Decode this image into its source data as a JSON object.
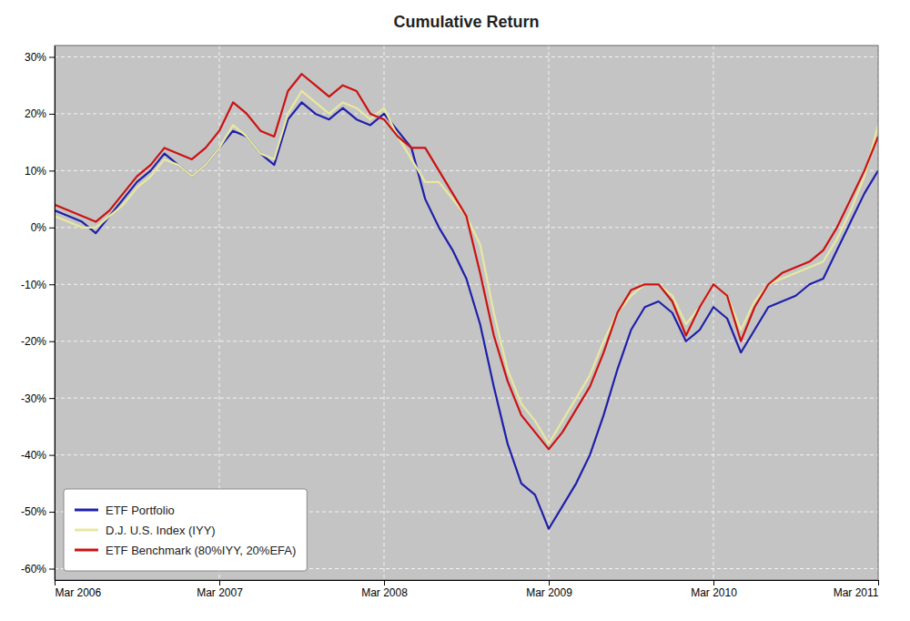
{
  "chart_data": {
    "type": "line",
    "title": "Cumulative Return",
    "x": [
      0,
      1,
      2,
      3,
      4,
      5,
      6,
      7,
      8,
      9,
      10,
      11,
      12,
      13,
      14,
      15,
      16,
      17,
      18,
      19,
      20,
      21,
      22,
      23,
      24,
      25,
      26,
      27,
      28,
      29,
      30,
      31,
      32,
      33,
      34,
      35,
      36,
      37,
      38,
      39,
      40,
      41,
      42,
      43,
      44,
      45,
      46,
      47,
      48,
      49,
      50,
      51,
      52,
      53,
      54,
      55,
      56,
      57,
      58,
      59,
      60
    ],
    "series": [
      {
        "name": "ETF Portfolio",
        "color": "#1f1faa",
        "values": [
          0.03,
          0.02,
          0.01,
          -0.01,
          0.02,
          0.05,
          0.08,
          0.1,
          0.13,
          0.11,
          0.09,
          0.11,
          0.14,
          0.17,
          0.16,
          0.13,
          0.11,
          0.19,
          0.22,
          0.2,
          0.19,
          0.21,
          0.19,
          0.18,
          0.2,
          0.17,
          0.14,
          0.05,
          0.0,
          -0.04,
          -0.09,
          -0.17,
          -0.28,
          -0.38,
          -0.45,
          -0.47,
          -0.53,
          -0.49,
          -0.45,
          -0.4,
          -0.33,
          -0.25,
          -0.18,
          -0.14,
          -0.13,
          -0.15,
          -0.2,
          -0.18,
          -0.14,
          -0.16,
          -0.22,
          -0.18,
          -0.14,
          -0.13,
          -0.12,
          -0.1,
          -0.09,
          -0.04,
          0.01,
          0.06,
          0.1
        ]
      },
      {
        "name": "D.J. U.S. Index (IYY)",
        "color": "#e8e8a0",
        "values": [
          0.02,
          0.01,
          0.0,
          0.0,
          0.02,
          0.04,
          0.07,
          0.09,
          0.12,
          0.11,
          0.09,
          0.11,
          0.14,
          0.18,
          0.16,
          0.13,
          0.12,
          0.2,
          0.24,
          0.22,
          0.2,
          0.22,
          0.21,
          0.19,
          0.21,
          0.16,
          0.12,
          0.08,
          0.08,
          0.05,
          0.02,
          -0.03,
          -0.15,
          -0.25,
          -0.31,
          -0.34,
          -0.38,
          -0.34,
          -0.3,
          -0.26,
          -0.2,
          -0.15,
          -0.12,
          -0.1,
          -0.1,
          -0.12,
          -0.17,
          -0.14,
          -0.1,
          -0.12,
          -0.18,
          -0.13,
          -0.1,
          -0.09,
          -0.08,
          -0.07,
          -0.06,
          -0.02,
          0.03,
          0.09,
          0.18
        ]
      },
      {
        "name": "ETF Benchmark (80%IYY, 20%EFA)",
        "color": "#cc1111",
        "values": [
          0.04,
          0.03,
          0.02,
          0.01,
          0.03,
          0.06,
          0.09,
          0.11,
          0.14,
          0.13,
          0.12,
          0.14,
          0.17,
          0.22,
          0.2,
          0.17,
          0.16,
          0.24,
          0.27,
          0.25,
          0.23,
          0.25,
          0.24,
          0.2,
          0.19,
          0.16,
          0.14,
          0.14,
          0.1,
          0.06,
          0.02,
          -0.08,
          -0.19,
          -0.27,
          -0.33,
          -0.36,
          -0.39,
          -0.36,
          -0.32,
          -0.28,
          -0.22,
          -0.15,
          -0.11,
          -0.1,
          -0.1,
          -0.13,
          -0.19,
          -0.14,
          -0.1,
          -0.12,
          -0.2,
          -0.14,
          -0.1,
          -0.08,
          -0.07,
          -0.06,
          -0.04,
          0.0,
          0.05,
          0.1,
          0.16
        ]
      }
    ],
    "xlim": [
      0,
      60
    ],
    "xticks": [
      {
        "value": 0,
        "label": "Mar 2006"
      },
      {
        "value": 12,
        "label": "Mar 2007"
      },
      {
        "value": 24,
        "label": "Mar 2008"
      },
      {
        "value": 36,
        "label": "Mar 2009"
      },
      {
        "value": 48,
        "label": "Mar 2010"
      },
      {
        "value": 60,
        "label": "Mar 2011"
      }
    ],
    "ylim": [
      -0.62,
      0.32
    ],
    "yticks": [
      {
        "value": -0.6,
        "label": "-60%"
      },
      {
        "value": -0.5,
        "label": "-50%"
      },
      {
        "value": -0.4,
        "label": "-40%"
      },
      {
        "value": -0.3,
        "label": "-30%"
      },
      {
        "value": -0.2,
        "label": "-20%"
      },
      {
        "value": -0.1,
        "label": "-10%"
      },
      {
        "value": 0.0,
        "label": "0%"
      },
      {
        "value": 0.1,
        "label": "10%"
      },
      {
        "value": 0.2,
        "label": "20%"
      },
      {
        "value": 0.3,
        "label": "30%"
      }
    ],
    "grid": true,
    "legend": "lower left"
  }
}
